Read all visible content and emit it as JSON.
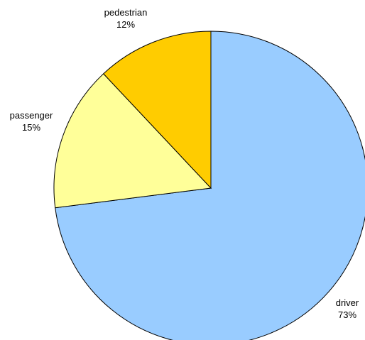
{
  "chart_data": {
    "type": "pie",
    "title": "",
    "slices": [
      {
        "label": "driver",
        "percent_label": "73%",
        "value": 73,
        "color": "#99ccff"
      },
      {
        "label": "passenger",
        "percent_label": "15%",
        "value": 15,
        "color": "#ffff99"
      },
      {
        "label": "pedestrian",
        "percent_label": "12%",
        "value": 12,
        "color": "#ffcc00"
      }
    ],
    "start": "12 o'clock",
    "direction": "clockwise",
    "legend": "none"
  }
}
